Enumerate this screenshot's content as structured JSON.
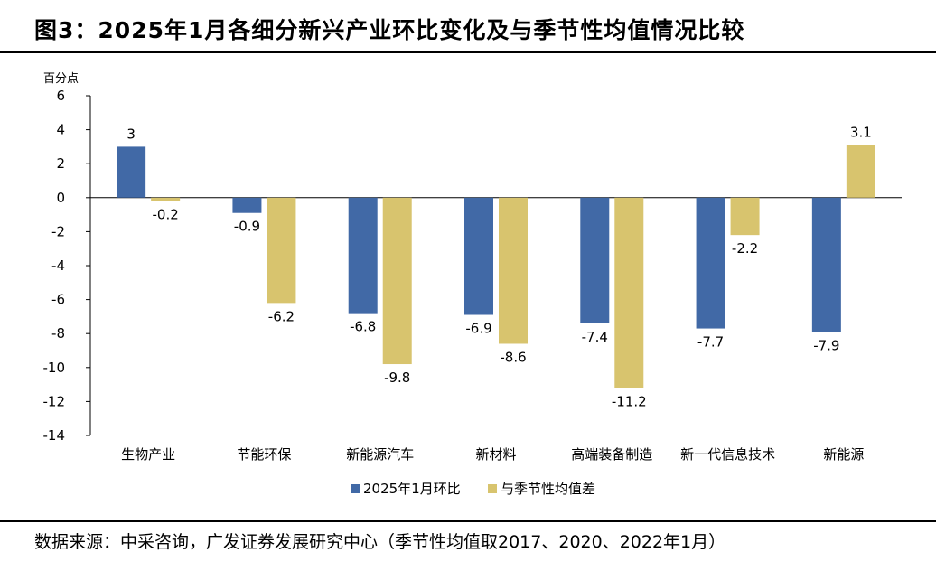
{
  "header": {
    "title": "图3：2025年1月各细分新兴产业环比变化及与季节性均值情况比较"
  },
  "footer": {
    "source": "数据来源：中采咨询，广发证券发展研究中心（季节性均值取2017、2020、2022年1月）"
  },
  "chart_data": {
    "type": "bar",
    "title": "",
    "xlabel": "",
    "ylabel": "百分点",
    "ylim": [
      -14,
      6
    ],
    "yticks": [
      6,
      4,
      2,
      0,
      -2,
      -4,
      -6,
      -8,
      -10,
      -12,
      -14
    ],
    "grid": false,
    "legend_position": "bottom",
    "categories": [
      "生物产业",
      "节能环保",
      "新能源汽车",
      "新材料",
      "高端装备制造",
      "新一代信息技术",
      "新能源"
    ],
    "series": [
      {
        "name": "2025年1月环比",
        "color": "#4169a6",
        "values": [
          3,
          -0.9,
          -6.8,
          -6.9,
          -7.4,
          -7.7,
          -7.9
        ]
      },
      {
        "name": "与季节性均值差",
        "color": "#d8c46e",
        "values": [
          -0.2,
          -6.2,
          -9.8,
          -8.6,
          -11.2,
          -2.2,
          3.1
        ]
      }
    ]
  }
}
